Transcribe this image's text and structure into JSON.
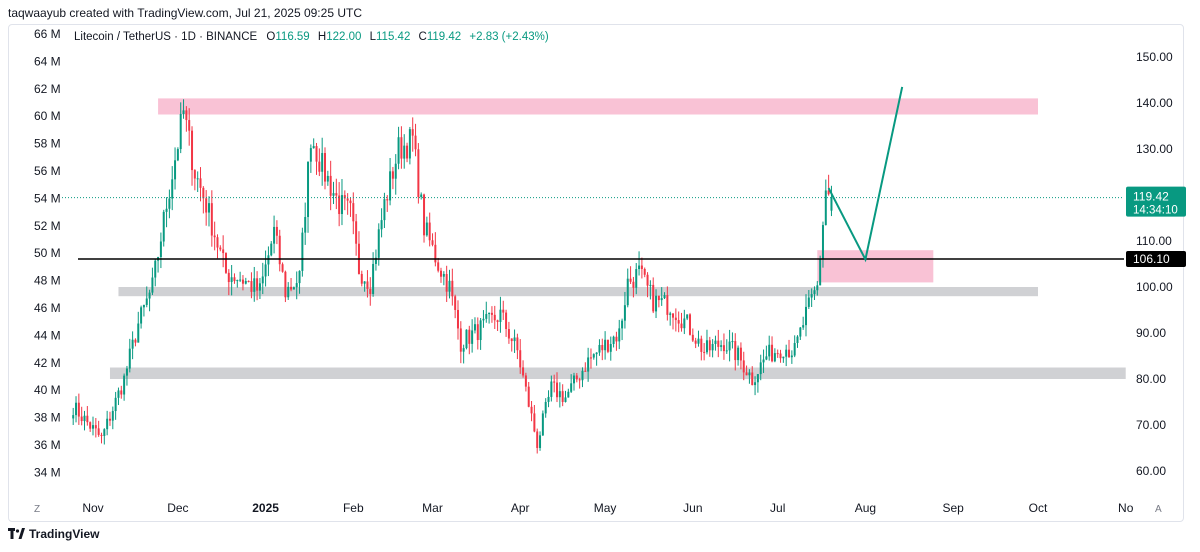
{
  "header": {
    "credit": "taqwaayub created with TradingView.com, Jul 21, 2025 09:25 UTC"
  },
  "legend": {
    "symbol": "Litecoin / TetherUS · 1D · BINANCE",
    "o_label": "O",
    "o": "116.59",
    "h_label": "H",
    "h": "122.00",
    "l_label": "L",
    "l": "115.42",
    "c_label": "C",
    "c": "119.42",
    "change": "+2.83 (+2.43%)"
  },
  "footer": {
    "brand": "TradingView",
    "z_button": "Z",
    "a_button": "A"
  },
  "colors": {
    "up": "#089981",
    "down": "#f23645",
    "pink_zone": "#f8bbd0",
    "gray_zone": "#c8c9cc",
    "level_line": "#000000",
    "projection": "#089981"
  },
  "chart_data": {
    "type": "candlestick",
    "price_axis": {
      "min": 60,
      "max": 150,
      "ticks": [
        "150.00",
        "140.00",
        "130.00",
        "110.00",
        "100.00",
        "90.00",
        "80.00",
        "70.00",
        "60.00"
      ]
    },
    "volume_axis": {
      "ticks": [
        "66 M",
        "64 M",
        "62 M",
        "60 M",
        "58 M",
        "56 M",
        "54 M",
        "52 M",
        "50 M",
        "48 M",
        "46 M",
        "44 M",
        "42 M",
        "40 M",
        "38 M",
        "36 M",
        "34 M"
      ]
    },
    "time_axis": {
      "labels": [
        "Nov",
        "Dec",
        "2025",
        "Feb",
        "Mar",
        "Apr",
        "May",
        "Jun",
        "Jul",
        "Aug",
        "Sep",
        "Oct",
        "No"
      ]
    },
    "current_price": {
      "value": 119.42,
      "label": "119.42",
      "countdown": "14:34:10"
    },
    "level_line": {
      "value": 106.1,
      "label": "106.10"
    },
    "zones": [
      {
        "kind": "supply",
        "from": "2024-11-24",
        "to": "2025-10-01",
        "low": 137.5,
        "high": 141.0
      },
      {
        "kind": "demand",
        "from": "2025-07-15",
        "to": "2025-08-25",
        "low": 101.0,
        "high": 108.0
      },
      {
        "kind": "support",
        "from": "2024-11-10",
        "to": "2025-10-01",
        "low": 98.0,
        "high": 100.0
      },
      {
        "kind": "support",
        "from": "2024-11-07",
        "to": "2025-11-01",
        "low": 80.0,
        "high": 82.5
      }
    ],
    "projection": [
      {
        "date": "2025-07-19",
        "price": 121.5
      },
      {
        "date": "2025-08-01",
        "price": 106.0
      },
      {
        "date": "2025-08-14",
        "price": 143.5
      }
    ],
    "anchors": [
      {
        "date": "2024-10-25",
        "close": 74
      },
      {
        "date": "2024-11-04",
        "close": 67
      },
      {
        "date": "2024-11-12",
        "close": 80
      },
      {
        "date": "2024-11-17",
        "close": 92
      },
      {
        "date": "2024-11-22",
        "close": 100
      },
      {
        "date": "2024-11-27",
        "close": 118
      },
      {
        "date": "2024-12-03",
        "close": 138
      },
      {
        "date": "2024-12-07",
        "close": 125
      },
      {
        "date": "2024-12-11",
        "close": 118
      },
      {
        "date": "2024-12-18",
        "close": 103
      },
      {
        "date": "2024-12-23",
        "close": 102
      },
      {
        "date": "2024-12-30",
        "close": 99
      },
      {
        "date": "2025-01-04",
        "close": 112
      },
      {
        "date": "2025-01-08",
        "close": 99
      },
      {
        "date": "2025-01-13",
        "close": 102
      },
      {
        "date": "2025-01-17",
        "close": 133
      },
      {
        "date": "2025-01-21",
        "close": 126
      },
      {
        "date": "2025-01-27",
        "close": 118
      },
      {
        "date": "2025-01-31",
        "close": 116
      },
      {
        "date": "2025-02-03",
        "close": 104
      },
      {
        "date": "2025-02-07",
        "close": 101
      },
      {
        "date": "2025-02-12",
        "close": 118
      },
      {
        "date": "2025-02-17",
        "close": 130
      },
      {
        "date": "2025-02-22",
        "close": 132
      },
      {
        "date": "2025-02-26",
        "close": 113
      },
      {
        "date": "2025-03-03",
        "close": 105
      },
      {
        "date": "2025-03-07",
        "close": 100
      },
      {
        "date": "2025-03-11",
        "close": 88
      },
      {
        "date": "2025-03-18",
        "close": 91
      },
      {
        "date": "2025-03-25",
        "close": 94
      },
      {
        "date": "2025-03-31",
        "close": 86
      },
      {
        "date": "2025-04-07",
        "close": 66
      },
      {
        "date": "2025-04-12",
        "close": 78
      },
      {
        "date": "2025-04-17",
        "close": 76
      },
      {
        "date": "2025-04-25",
        "close": 84
      },
      {
        "date": "2025-05-02",
        "close": 88
      },
      {
        "date": "2025-05-06",
        "close": 90
      },
      {
        "date": "2025-05-09",
        "close": 101
      },
      {
        "date": "2025-05-13",
        "close": 103
      },
      {
        "date": "2025-05-18",
        "close": 97
      },
      {
        "date": "2025-05-24",
        "close": 96
      },
      {
        "date": "2025-05-30",
        "close": 92
      },
      {
        "date": "2025-06-05",
        "close": 86
      },
      {
        "date": "2025-06-12",
        "close": 88
      },
      {
        "date": "2025-06-17",
        "close": 85
      },
      {
        "date": "2025-06-22",
        "close": 80
      },
      {
        "date": "2025-06-27",
        "close": 85
      },
      {
        "date": "2025-07-03",
        "close": 87
      },
      {
        "date": "2025-07-07",
        "close": 86
      },
      {
        "date": "2025-07-11",
        "close": 94
      },
      {
        "date": "2025-07-15",
        "close": 100
      },
      {
        "date": "2025-07-18",
        "close": 121
      },
      {
        "date": "2025-07-20",
        "close": 119.4
      }
    ]
  }
}
